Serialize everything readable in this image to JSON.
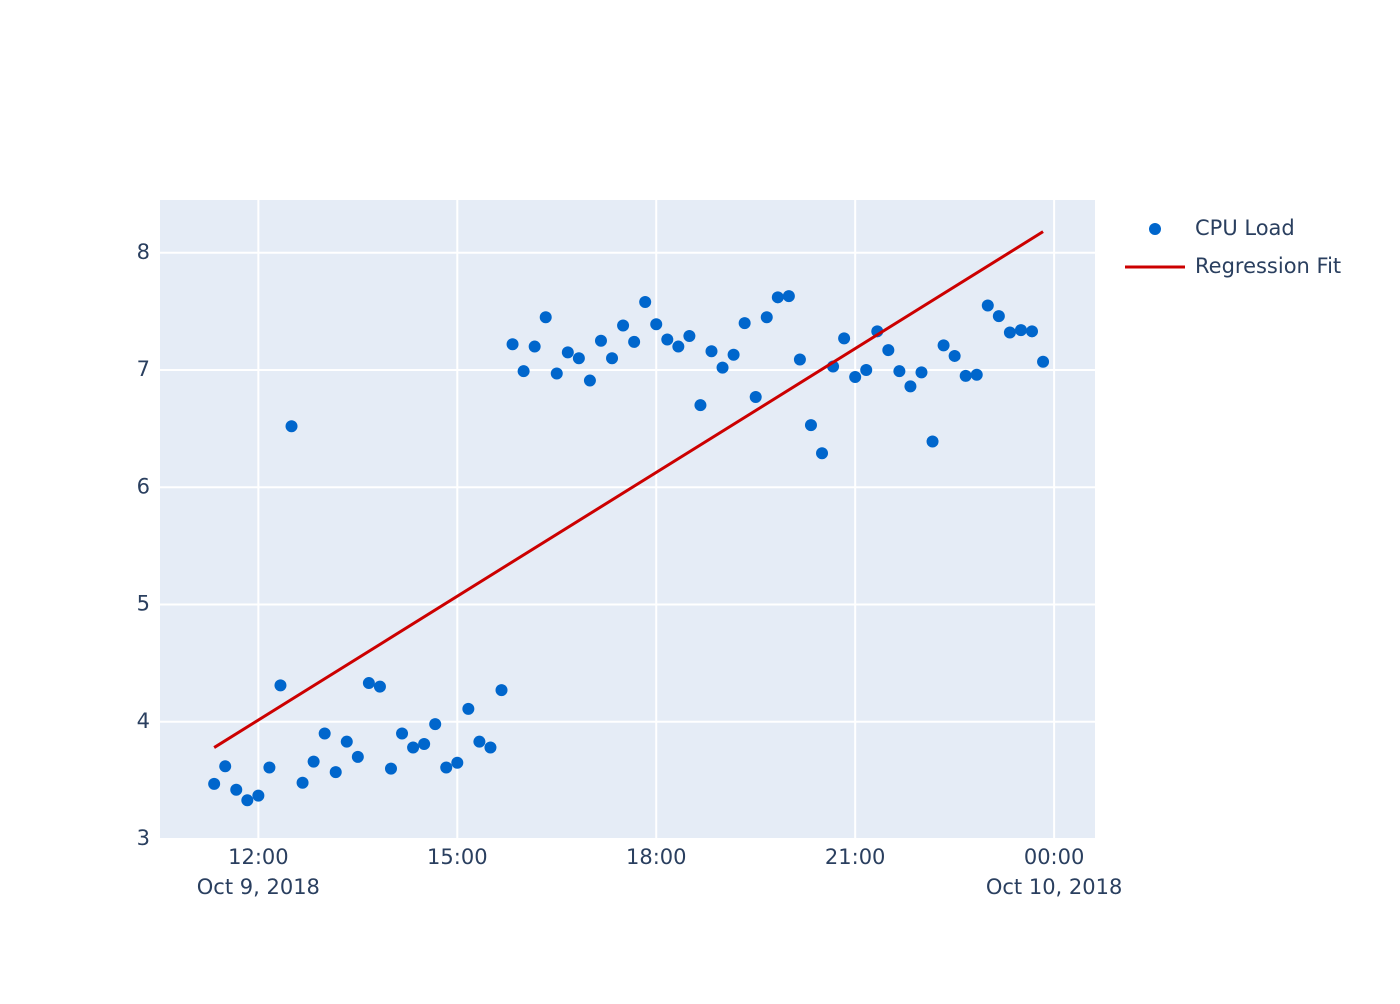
{
  "chart_data": {
    "type": "scatter",
    "xlim": [
      "2018-10-09 10:31",
      "2018-10-10 00:37"
    ],
    "ylim": [
      3,
      8.45
    ],
    "xticks": [
      {
        "value": "2018-10-09 12:00",
        "label": "12:00",
        "date": "Oct 9, 2018"
      },
      {
        "value": "2018-10-09 15:00",
        "label": "15:00"
      },
      {
        "value": "2018-10-09 18:00",
        "label": "18:00"
      },
      {
        "value": "2018-10-09 21:00",
        "label": "21:00"
      },
      {
        "value": "2018-10-10 00:00",
        "label": "00:00",
        "date": "Oct 10, 2018"
      }
    ],
    "yticks": [
      3,
      4,
      5,
      6,
      7,
      8
    ],
    "grid": true,
    "legend": "right",
    "series": [
      {
        "name": "CPU Load",
        "mode": "markers",
        "color": "#0066cc",
        "x": [
          "2018-10-09 11:20",
          "2018-10-09 11:30",
          "2018-10-09 11:40",
          "2018-10-09 11:50",
          "2018-10-09 12:00",
          "2018-10-09 12:10",
          "2018-10-09 12:20",
          "2018-10-09 12:30",
          "2018-10-09 12:40",
          "2018-10-09 12:50",
          "2018-10-09 13:00",
          "2018-10-09 13:10",
          "2018-10-09 13:20",
          "2018-10-09 13:30",
          "2018-10-09 13:40",
          "2018-10-09 13:50",
          "2018-10-09 14:00",
          "2018-10-09 14:10",
          "2018-10-09 14:20",
          "2018-10-09 14:30",
          "2018-10-09 14:40",
          "2018-10-09 14:50",
          "2018-10-09 15:00",
          "2018-10-09 15:10",
          "2018-10-09 15:20",
          "2018-10-09 15:30",
          "2018-10-09 15:40",
          "2018-10-09 15:50",
          "2018-10-09 16:00",
          "2018-10-09 16:10",
          "2018-10-09 16:20",
          "2018-10-09 16:30",
          "2018-10-09 16:40",
          "2018-10-09 16:50",
          "2018-10-09 17:00",
          "2018-10-09 17:10",
          "2018-10-09 17:20",
          "2018-10-09 17:30",
          "2018-10-09 17:40",
          "2018-10-09 17:50",
          "2018-10-09 18:00",
          "2018-10-09 18:10",
          "2018-10-09 18:20",
          "2018-10-09 18:30",
          "2018-10-09 18:40",
          "2018-10-09 18:50",
          "2018-10-09 19:00",
          "2018-10-09 19:10",
          "2018-10-09 19:20",
          "2018-10-09 19:30",
          "2018-10-09 19:40",
          "2018-10-09 19:50",
          "2018-10-09 20:00",
          "2018-10-09 20:10",
          "2018-10-09 20:20",
          "2018-10-09 20:30",
          "2018-10-09 20:40",
          "2018-10-09 20:50",
          "2018-10-09 21:00",
          "2018-10-09 21:10",
          "2018-10-09 21:20",
          "2018-10-09 21:30",
          "2018-10-09 21:40",
          "2018-10-09 21:50",
          "2018-10-09 22:00",
          "2018-10-09 22:10",
          "2018-10-09 22:20",
          "2018-10-09 22:30",
          "2018-10-09 22:40",
          "2018-10-09 22:50",
          "2018-10-09 23:00",
          "2018-10-09 23:10",
          "2018-10-09 23:20",
          "2018-10-09 23:30",
          "2018-10-09 23:40",
          "2018-10-09 23:50"
        ],
        "values": [
          3.47,
          3.62,
          3.42,
          3.33,
          3.37,
          3.61,
          4.31,
          6.52,
          3.48,
          3.66,
          3.9,
          3.57,
          3.83,
          3.7,
          4.33,
          4.3,
          3.6,
          3.9,
          3.78,
          3.81,
          3.98,
          3.61,
          3.65,
          4.11,
          3.83,
          3.78,
          4.27,
          7.22,
          6.99,
          7.2,
          7.45,
          6.97,
          7.15,
          7.1,
          6.91,
          7.25,
          7.1,
          7.38,
          7.24,
          7.58,
          7.39,
          7.26,
          7.2,
          7.29,
          6.7,
          7.16,
          7.02,
          7.13,
          7.4,
          6.77,
          7.45,
          7.62,
          7.63,
          7.09,
          6.53,
          6.29,
          7.03,
          7.27,
          6.94,
          7.0,
          7.33,
          7.17,
          6.99,
          6.86,
          6.98,
          6.39,
          7.21,
          7.12,
          6.95,
          6.96,
          7.55,
          7.46,
          7.32,
          7.34,
          7.33,
          7.07
        ]
      },
      {
        "name": "Regression Fit",
        "mode": "line",
        "color": "#cc0000",
        "x": [
          "2018-10-09 11:20",
          "2018-10-09 23:50"
        ],
        "values": [
          3.78,
          8.18
        ]
      }
    ]
  }
}
